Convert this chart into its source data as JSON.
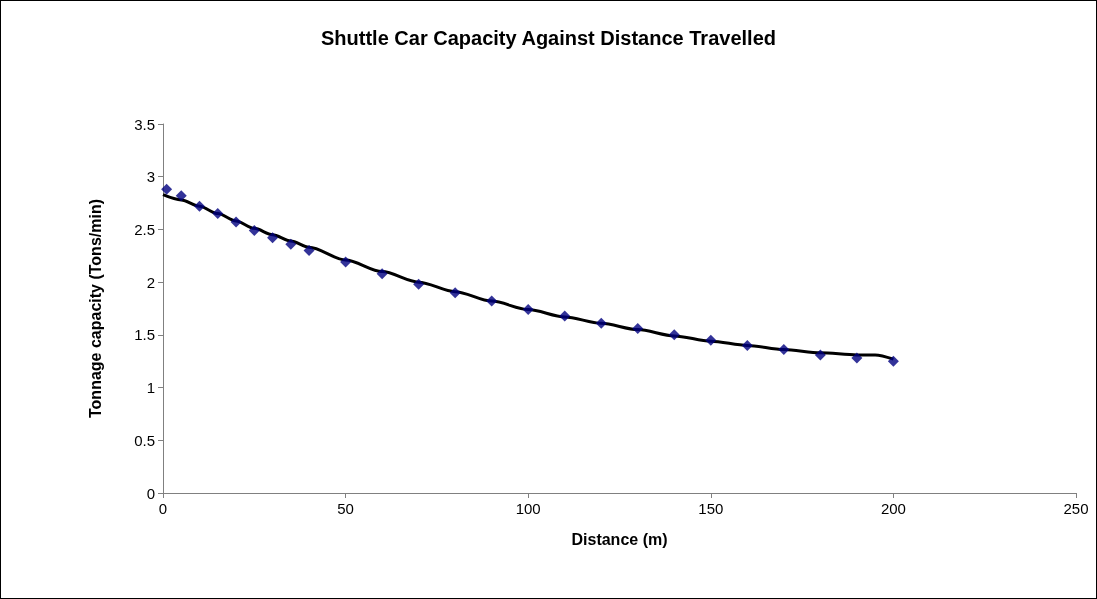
{
  "chart_data": {
    "type": "scatter",
    "title": "Shuttle Car Capacity Against Distance Travelled",
    "xlabel": "Distance (m)",
    "ylabel": "Tonnage capacity (Tons/min)",
    "x": [
      1,
      5,
      10,
      15,
      20,
      25,
      30,
      35,
      40,
      50,
      60,
      70,
      80,
      90,
      100,
      110,
      120,
      130,
      140,
      150,
      160,
      170,
      180,
      190,
      200
    ],
    "series": [
      {
        "color": "#000080",
        "marker": "diamond",
        "values": [
          2.88,
          2.82,
          2.72,
          2.65,
          2.57,
          2.49,
          2.42,
          2.36,
          2.3,
          2.19,
          2.08,
          1.98,
          1.9,
          1.82,
          1.74,
          1.68,
          1.61,
          1.56,
          1.5,
          1.45,
          1.4,
          1.36,
          1.31,
          1.28,
          1.25
        ]
      },
      {
        "type": "line",
        "color": "#000000",
        "marker": "none",
        "x": [
          0,
          5,
          10,
          15,
          20,
          25,
          30,
          35,
          40,
          50,
          60,
          70,
          80,
          90,
          100,
          110,
          120,
          130,
          140,
          150,
          160,
          170,
          180,
          190,
          195,
          200
        ],
        "values": [
          2.83,
          2.78,
          2.72,
          2.65,
          2.58,
          2.51,
          2.45,
          2.39,
          2.33,
          2.21,
          2.1,
          2.0,
          1.91,
          1.82,
          1.74,
          1.67,
          1.61,
          1.55,
          1.49,
          1.44,
          1.4,
          1.36,
          1.33,
          1.31,
          1.31,
          1.27
        ]
      }
    ],
    "xlim": [
      0,
      250
    ],
    "xticks": [
      0,
      50,
      100,
      150,
      200,
      250
    ],
    "ylim": [
      0,
      3.5
    ],
    "yticks": [
      0,
      0.5,
      1,
      1.5,
      2,
      2.5,
      3,
      3.5
    ],
    "grid": false
  }
}
